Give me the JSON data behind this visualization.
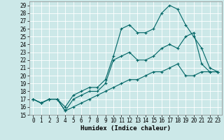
{
  "title": "",
  "xlabel": "Humidex (Indice chaleur)",
  "bg_color": "#cce8e8",
  "line_color": "#006666",
  "xlim": [
    -0.5,
    23.5
  ],
  "ylim": [
    15,
    29.5
  ],
  "xticks": [
    0,
    1,
    2,
    3,
    4,
    5,
    6,
    7,
    8,
    9,
    10,
    11,
    12,
    13,
    14,
    15,
    16,
    17,
    18,
    19,
    20,
    21,
    22,
    23
  ],
  "yticks": [
    15,
    16,
    17,
    18,
    19,
    20,
    21,
    22,
    23,
    24,
    25,
    26,
    27,
    28,
    29
  ],
  "line1_x": [
    0,
    1,
    2,
    3,
    4,
    5,
    6,
    7,
    8,
    9,
    10,
    11,
    12,
    13,
    14,
    15,
    16,
    17,
    18,
    19,
    20,
    21,
    22,
    23
  ],
  "line1_y": [
    17.0,
    16.5,
    17.0,
    17.0,
    16.0,
    17.5,
    18.0,
    18.5,
    18.5,
    19.5,
    22.5,
    26.0,
    26.5,
    25.5,
    25.5,
    26.0,
    28.0,
    29.0,
    28.5,
    26.5,
    25.0,
    23.5,
    21.0,
    20.5
  ],
  "line2_x": [
    0,
    1,
    2,
    3,
    4,
    5,
    6,
    7,
    8,
    9,
    10,
    11,
    12,
    13,
    14,
    15,
    16,
    17,
    18,
    19,
    20,
    21,
    22,
    23
  ],
  "line2_y": [
    17.0,
    16.5,
    17.0,
    17.0,
    15.5,
    17.0,
    17.5,
    18.0,
    18.0,
    19.0,
    22.0,
    22.5,
    23.0,
    22.0,
    22.0,
    22.5,
    23.5,
    24.0,
    23.5,
    25.0,
    25.5,
    21.5,
    20.5,
    20.5
  ],
  "line3_x": [
    0,
    1,
    2,
    3,
    4,
    5,
    6,
    7,
    8,
    9,
    10,
    11,
    12,
    13,
    14,
    15,
    16,
    17,
    18,
    19,
    20,
    21,
    22,
    23
  ],
  "line3_y": [
    17.0,
    16.5,
    17.0,
    17.0,
    15.5,
    16.0,
    16.5,
    17.0,
    17.5,
    18.0,
    18.5,
    19.0,
    19.5,
    19.5,
    20.0,
    20.5,
    20.5,
    21.0,
    21.5,
    20.0,
    20.0,
    20.5,
    20.5,
    20.5
  ],
  "tick_fontsize": 5.5,
  "xlabel_fontsize": 6.5
}
